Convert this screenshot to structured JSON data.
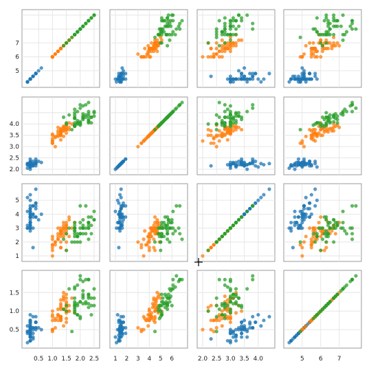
{
  "chart_data": {
    "type": "scatter",
    "layout": "scatter-plot-matrix",
    "title": "",
    "grid": true,
    "legend": "none",
    "variables": [
      {
        "range": [
          4.3,
          7.9
        ],
        "ticks": [
          5,
          6,
          7
        ]
      },
      {
        "range": [
          2.0,
          4.4
        ],
        "ticks": [
          2.0,
          2.5,
          3.0,
          3.5,
          4.0
        ]
      },
      {
        "range": [
          1.0,
          6.9
        ],
        "ticks": [
          1,
          2,
          3,
          4,
          5,
          6
        ]
      },
      {
        "range": [
          0.1,
          2.5
        ],
        "ticks": [
          0.5,
          1.0,
          1.5,
          2.0,
          2.5
        ]
      }
    ],
    "column_x_ticks": [
      {
        "col": 0,
        "ticks": [
          "0.5",
          "1.0",
          "1.5",
          "2.0",
          "2.5"
        ]
      },
      {
        "col": 1,
        "ticks": [
          "1",
          "2",
          "3",
          "4",
          "5",
          "6"
        ]
      },
      {
        "col": 2,
        "ticks": [
          "2.0",
          "2.5",
          "3.0",
          "3.5",
          "4.0"
        ]
      },
      {
        "col": 3,
        "ticks": [
          "5",
          "6",
          "7"
        ]
      }
    ],
    "row_y_ticks": [
      {
        "row": 0,
        "ticks": [
          "5",
          "6",
          "7"
        ]
      },
      {
        "row": 1,
        "ticks": [
          "2.0",
          "2.5",
          "3.0",
          "3.5",
          "4.0"
        ]
      },
      {
        "row": 2,
        "ticks": [
          "1",
          "2",
          "3",
          "4",
          "5",
          "6"
        ]
      },
      {
        "row": 3,
        "ticks": [
          "0.5",
          "1.0",
          "1.5",
          "2.0",
          "2.5"
        ]
      }
    ],
    "series": [
      {
        "color": "#1f77b4",
        "values": [
          [
            5.1,
            3.5,
            1.4,
            0.2
          ],
          [
            4.9,
            3.0,
            1.4,
            0.2
          ],
          [
            4.7,
            3.2,
            1.3,
            0.2
          ],
          [
            4.6,
            3.1,
            1.5,
            0.2
          ],
          [
            5.0,
            3.6,
            1.4,
            0.2
          ],
          [
            5.4,
            3.9,
            1.7,
            0.4
          ],
          [
            4.6,
            3.4,
            1.4,
            0.3
          ],
          [
            5.0,
            3.4,
            1.5,
            0.2
          ],
          [
            4.4,
            2.9,
            1.4,
            0.2
          ],
          [
            4.9,
            3.1,
            1.5,
            0.1
          ],
          [
            5.4,
            3.7,
            1.5,
            0.2
          ],
          [
            4.8,
            3.4,
            1.6,
            0.2
          ],
          [
            4.8,
            3.0,
            1.4,
            0.1
          ],
          [
            4.3,
            3.0,
            1.1,
            0.1
          ],
          [
            5.8,
            4.0,
            1.2,
            0.2
          ],
          [
            5.7,
            4.4,
            1.5,
            0.4
          ],
          [
            5.4,
            3.9,
            1.3,
            0.4
          ],
          [
            5.1,
            3.5,
            1.4,
            0.3
          ],
          [
            5.7,
            3.8,
            1.7,
            0.3
          ],
          [
            5.1,
            3.8,
            1.5,
            0.3
          ],
          [
            5.4,
            3.4,
            1.7,
            0.2
          ],
          [
            5.1,
            3.7,
            1.5,
            0.4
          ],
          [
            4.6,
            3.6,
            1.0,
            0.2
          ],
          [
            5.1,
            3.3,
            1.7,
            0.5
          ],
          [
            4.8,
            3.4,
            1.9,
            0.2
          ],
          [
            5.0,
            3.0,
            1.6,
            0.2
          ],
          [
            5.0,
            3.4,
            1.6,
            0.4
          ],
          [
            5.2,
            3.5,
            1.5,
            0.2
          ],
          [
            5.2,
            3.4,
            1.4,
            0.2
          ],
          [
            4.7,
            3.2,
            1.6,
            0.2
          ],
          [
            4.8,
            3.1,
            1.6,
            0.2
          ],
          [
            5.4,
            3.4,
            1.5,
            0.4
          ],
          [
            5.2,
            4.1,
            1.5,
            0.1
          ],
          [
            5.5,
            4.2,
            1.4,
            0.2
          ],
          [
            4.9,
            3.1,
            1.5,
            0.2
          ],
          [
            5.0,
            3.2,
            1.2,
            0.2
          ],
          [
            5.5,
            3.5,
            1.3,
            0.2
          ],
          [
            4.9,
            3.6,
            1.4,
            0.1
          ],
          [
            4.4,
            3.0,
            1.3,
            0.2
          ],
          [
            5.1,
            3.4,
            1.5,
            0.2
          ],
          [
            5.0,
            3.5,
            1.3,
            0.3
          ],
          [
            4.5,
            2.3,
            1.3,
            0.3
          ],
          [
            4.4,
            3.2,
            1.3,
            0.2
          ],
          [
            5.0,
            3.5,
            1.6,
            0.6
          ],
          [
            5.1,
            3.8,
            1.9,
            0.4
          ],
          [
            4.8,
            3.0,
            1.4,
            0.3
          ],
          [
            5.1,
            3.8,
            1.6,
            0.2
          ],
          [
            4.6,
            3.2,
            1.4,
            0.2
          ],
          [
            5.3,
            3.7,
            1.5,
            0.2
          ],
          [
            5.0,
            3.3,
            1.4,
            0.2
          ]
        ]
      },
      {
        "color": "#ff7f0e",
        "values": [
          [
            7.0,
            3.2,
            4.7,
            1.4
          ],
          [
            6.4,
            3.2,
            4.5,
            1.5
          ],
          [
            6.9,
            3.1,
            4.9,
            1.5
          ],
          [
            5.5,
            2.3,
            4.0,
            1.3
          ],
          [
            6.5,
            2.8,
            4.6,
            1.5
          ],
          [
            5.7,
            2.8,
            4.5,
            1.3
          ],
          [
            6.3,
            3.3,
            4.7,
            1.6
          ],
          [
            4.9,
            2.4,
            3.3,
            1.0
          ],
          [
            6.6,
            2.9,
            4.6,
            1.3
          ],
          [
            5.2,
            2.7,
            3.9,
            1.4
          ],
          [
            5.0,
            2.0,
            3.5,
            1.0
          ],
          [
            5.9,
            3.0,
            4.2,
            1.5
          ],
          [
            6.0,
            2.2,
            4.0,
            1.0
          ],
          [
            6.1,
            2.9,
            4.7,
            1.4
          ],
          [
            5.6,
            2.9,
            3.6,
            1.3
          ],
          [
            6.7,
            3.1,
            4.4,
            1.4
          ],
          [
            5.6,
            3.0,
            4.5,
            1.5
          ],
          [
            5.8,
            2.7,
            4.1,
            1.0
          ],
          [
            6.2,
            2.2,
            4.5,
            1.5
          ],
          [
            5.6,
            2.5,
            3.9,
            1.1
          ],
          [
            5.9,
            3.2,
            4.8,
            1.8
          ],
          [
            6.1,
            2.8,
            4.0,
            1.3
          ],
          [
            6.3,
            2.5,
            4.9,
            1.5
          ],
          [
            6.1,
            2.8,
            4.7,
            1.2
          ],
          [
            6.4,
            2.9,
            4.3,
            1.3
          ],
          [
            6.6,
            3.0,
            4.4,
            1.4
          ],
          [
            6.8,
            2.8,
            4.8,
            1.4
          ],
          [
            6.7,
            3.0,
            5.0,
            1.7
          ],
          [
            6.0,
            2.9,
            4.5,
            1.5
          ],
          [
            5.7,
            2.6,
            3.5,
            1.0
          ],
          [
            5.5,
            2.4,
            3.8,
            1.1
          ],
          [
            5.5,
            2.4,
            3.7,
            1.0
          ],
          [
            5.8,
            2.7,
            3.9,
            1.2
          ],
          [
            6.0,
            2.7,
            5.1,
            1.6
          ],
          [
            5.4,
            3.0,
            4.5,
            1.5
          ],
          [
            6.0,
            3.4,
            4.5,
            1.6
          ],
          [
            6.7,
            3.1,
            4.7,
            1.5
          ],
          [
            6.3,
            2.3,
            4.4,
            1.3
          ],
          [
            5.6,
            3.0,
            4.1,
            1.3
          ],
          [
            5.5,
            2.5,
            4.0,
            1.3
          ],
          [
            5.5,
            2.6,
            4.4,
            1.2
          ],
          [
            6.1,
            3.0,
            4.6,
            1.4
          ],
          [
            5.8,
            2.6,
            4.0,
            1.2
          ],
          [
            5.0,
            2.3,
            3.3,
            1.0
          ],
          [
            5.6,
            2.7,
            4.2,
            1.3
          ],
          [
            5.7,
            3.0,
            4.2,
            1.2
          ],
          [
            5.7,
            2.9,
            4.2,
            1.3
          ],
          [
            6.2,
            2.9,
            4.3,
            1.3
          ],
          [
            5.1,
            2.5,
            3.0,
            1.1
          ],
          [
            5.7,
            2.8,
            4.1,
            1.3
          ]
        ]
      },
      {
        "color": "#2ca02c",
        "values": [
          [
            6.3,
            3.3,
            6.0,
            2.5
          ],
          [
            5.8,
            2.7,
            5.1,
            1.9
          ],
          [
            7.1,
            3.0,
            5.9,
            2.1
          ],
          [
            6.3,
            2.9,
            5.6,
            1.8
          ],
          [
            6.5,
            3.0,
            5.8,
            2.2
          ],
          [
            7.6,
            3.0,
            6.6,
            2.1
          ],
          [
            4.9,
            2.5,
            4.5,
            1.7
          ],
          [
            7.3,
            2.9,
            6.3,
            1.8
          ],
          [
            6.7,
            2.5,
            5.8,
            1.8
          ],
          [
            7.2,
            3.6,
            6.1,
            2.5
          ],
          [
            6.5,
            3.2,
            5.1,
            2.0
          ],
          [
            6.4,
            2.7,
            5.3,
            1.9
          ],
          [
            6.8,
            3.0,
            5.5,
            2.1
          ],
          [
            5.7,
            2.5,
            5.0,
            2.0
          ],
          [
            5.8,
            2.8,
            5.1,
            2.4
          ],
          [
            6.4,
            3.2,
            5.3,
            2.3
          ],
          [
            6.5,
            3.0,
            5.5,
            1.8
          ],
          [
            7.7,
            3.8,
            6.7,
            2.2
          ],
          [
            7.7,
            2.6,
            6.9,
            2.3
          ],
          [
            6.0,
            2.2,
            5.0,
            1.5
          ],
          [
            6.9,
            3.2,
            5.7,
            2.3
          ],
          [
            5.6,
            2.8,
            4.9,
            2.0
          ],
          [
            7.7,
            2.8,
            6.7,
            2.0
          ],
          [
            6.3,
            2.7,
            4.9,
            1.8
          ],
          [
            6.7,
            3.3,
            5.7,
            2.1
          ],
          [
            7.2,
            3.2,
            6.0,
            1.8
          ],
          [
            6.2,
            2.8,
            4.8,
            1.8
          ],
          [
            6.1,
            3.0,
            4.9,
            1.8
          ],
          [
            6.4,
            2.8,
            5.6,
            2.1
          ],
          [
            7.2,
            3.0,
            5.8,
            1.6
          ],
          [
            7.4,
            2.8,
            6.1,
            1.9
          ],
          [
            7.9,
            3.8,
            6.4,
            2.0
          ],
          [
            6.4,
            2.8,
            5.6,
            2.2
          ],
          [
            6.3,
            2.8,
            5.1,
            1.5
          ],
          [
            6.1,
            2.6,
            5.6,
            1.4
          ],
          [
            7.7,
            3.0,
            6.1,
            2.3
          ],
          [
            6.3,
            3.4,
            5.6,
            2.4
          ],
          [
            6.4,
            3.1,
            5.5,
            1.8
          ],
          [
            6.0,
            3.0,
            4.8,
            1.8
          ],
          [
            6.9,
            3.1,
            5.4,
            2.1
          ],
          [
            6.7,
            3.1,
            5.6,
            2.4
          ],
          [
            6.9,
            3.1,
            5.1,
            2.3
          ],
          [
            5.8,
            2.7,
            5.1,
            1.9
          ],
          [
            6.8,
            3.2,
            5.9,
            2.3
          ],
          [
            6.7,
            3.3,
            5.7,
            2.5
          ],
          [
            6.7,
            3.0,
            5.2,
            2.3
          ],
          [
            6.3,
            2.5,
            5.0,
            1.9
          ],
          [
            6.5,
            3.0,
            5.2,
            2.0
          ],
          [
            6.2,
            3.4,
            5.4,
            2.3
          ],
          [
            5.9,
            3.0,
            5.1,
            1.8
          ]
        ]
      }
    ]
  }
}
